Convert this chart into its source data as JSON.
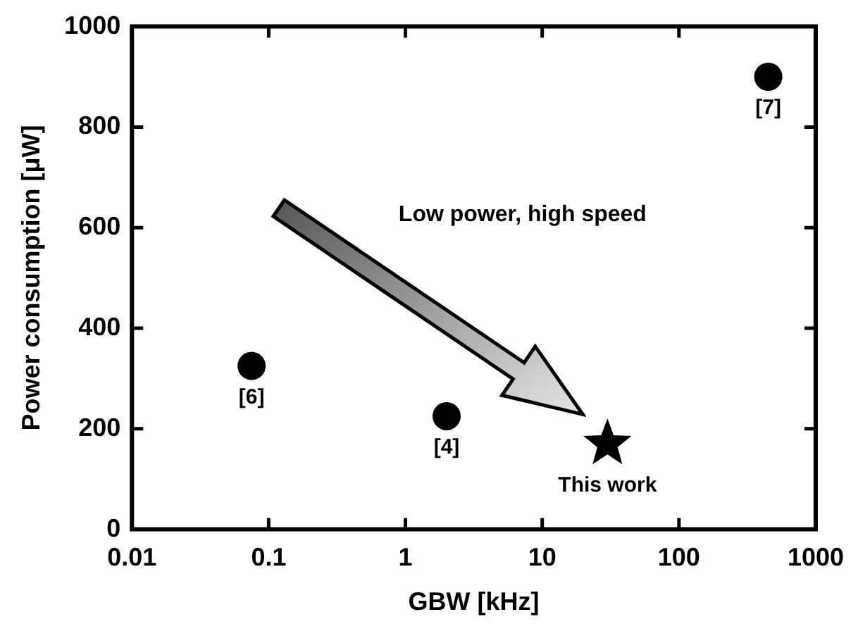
{
  "chart_data": {
    "type": "scatter",
    "xlabel": "GBW [kHz]",
    "ylabel": "Power consumption [μW]",
    "log": "x",
    "xlim": [
      0.01,
      1000
    ],
    "xticks": [
      0.01,
      0.1,
      1,
      10,
      100,
      1000
    ],
    "ylim": [
      0,
      1000
    ],
    "yticks": [
      0,
      200,
      400,
      600,
      800,
      1000
    ],
    "grid": false,
    "legend": false,
    "annotations": [
      "Low power, high speed",
      {
        "text": "[6]",
        "x": 0.075,
        "y": 325
      },
      {
        "text": "[4]",
        "x": 2,
        "y": 225
      },
      {
        "text": "[7]",
        "x": 450,
        "y": 900
      },
      {
        "text": "This work",
        "x": 30,
        "y": 170
      }
    ],
    "series": [
      {
        "marker": "circle",
        "color": "#000000",
        "x": [
          0.075,
          2,
          450
        ],
        "values": [
          325,
          225,
          900
        ]
      },
      {
        "marker": "star",
        "color": "#000000",
        "x": [
          30
        ],
        "values": [
          170
        ]
      }
    ]
  }
}
